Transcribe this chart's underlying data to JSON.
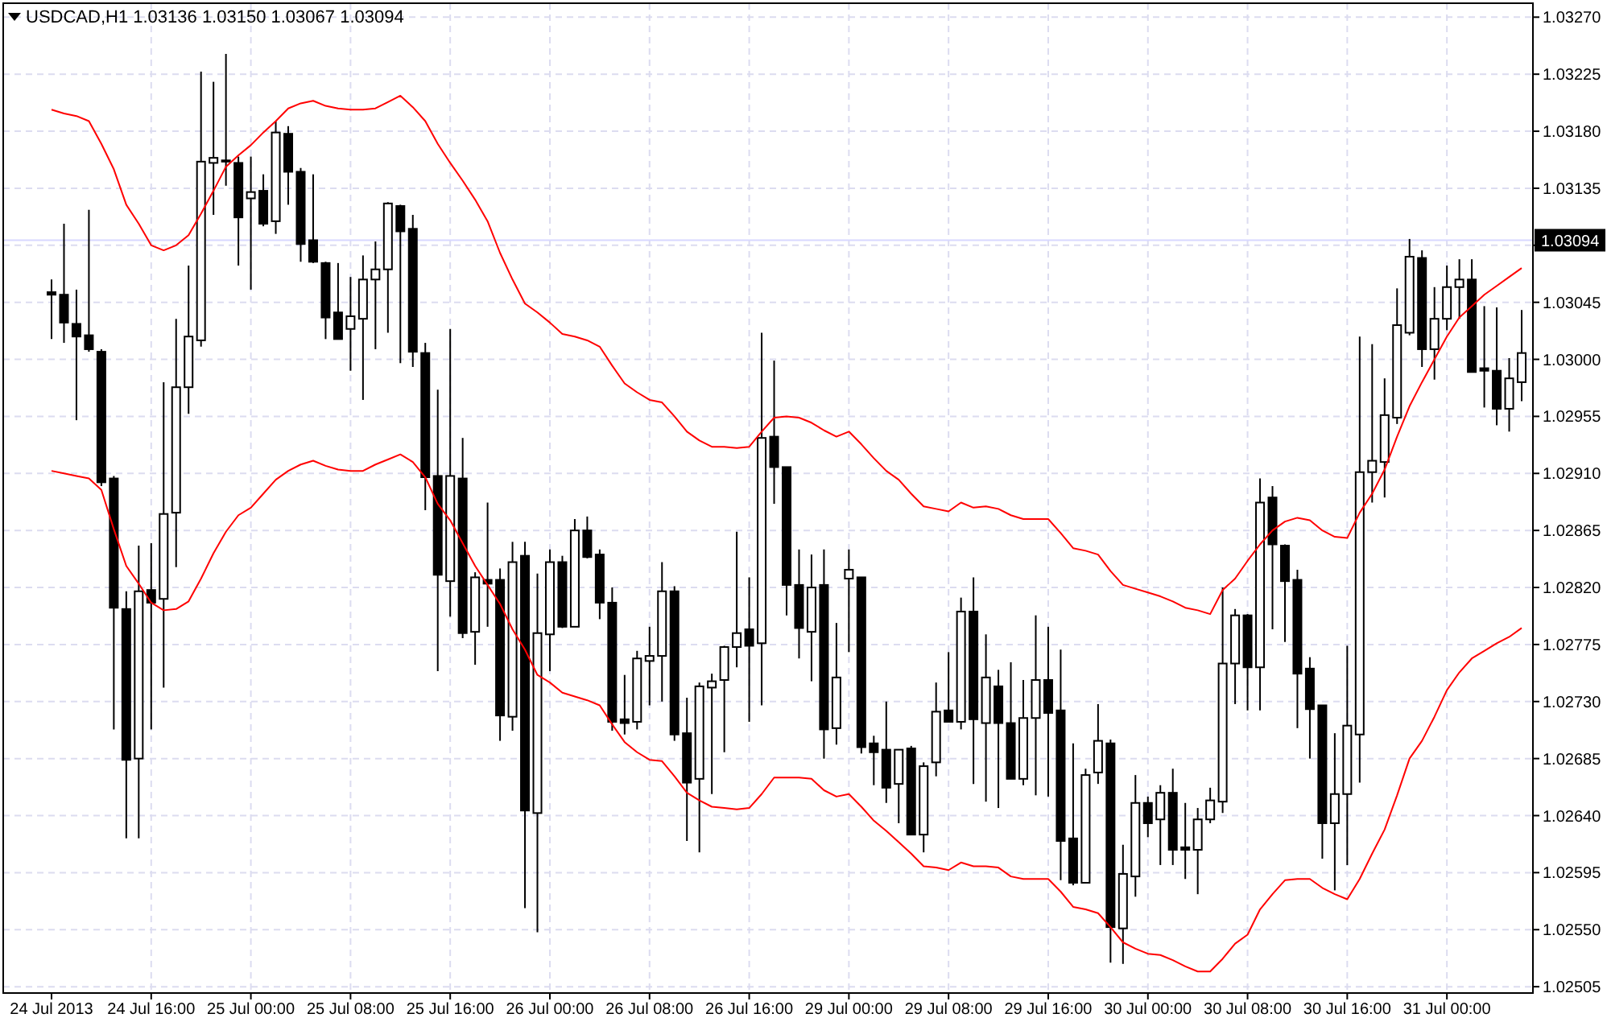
{
  "chart_data": {
    "type": "candlestick",
    "title": "USDCAD,H1 1.03136 1.03150 1.03067 1.03094",
    "categories": [
      "24 Jul 2013",
      null,
      null,
      null,
      null,
      null,
      null,
      null,
      "24 Jul 16:00",
      null,
      null,
      null,
      null,
      null,
      null,
      null,
      "25 Jul 00:00",
      null,
      null,
      null,
      null,
      null,
      null,
      null,
      "25 Jul 08:00",
      null,
      null,
      null,
      null,
      null,
      null,
      null,
      "25 Jul 16:00",
      null,
      null,
      null,
      null,
      null,
      null,
      null,
      "26 Jul 00:00",
      null,
      null,
      null,
      null,
      null,
      null,
      null,
      "26 Jul 08:00",
      null,
      null,
      null,
      null,
      null,
      null,
      null,
      "26 Jul 16:00",
      null,
      null,
      null,
      null,
      null,
      null,
      null,
      "29 Jul 00:00",
      null,
      null,
      null,
      null,
      null,
      null,
      null,
      "29 Jul 08:00",
      null,
      null,
      null,
      null,
      null,
      null,
      null,
      "29 Jul 16:00",
      null,
      null,
      null,
      null,
      null,
      null,
      null,
      "30 Jul 00:00",
      null,
      null,
      null,
      null,
      null,
      null,
      null,
      "30 Jul 08:00",
      null,
      null,
      null,
      null,
      null,
      null,
      null,
      "30 Jul 16:00",
      null,
      null,
      null,
      null,
      null,
      null,
      null,
      "31 Jul 00:00",
      null,
      null,
      null,
      null,
      null,
      null
    ],
    "ohlc": [
      [
        1.03053,
        1.03063,
        1.03016,
        1.03051
      ],
      [
        1.03051,
        1.03107,
        1.03013,
        1.03029
      ],
      [
        1.03028,
        1.03055,
        1.02952,
        1.03018
      ],
      [
        1.03019,
        1.03118,
        1.03006,
        1.03008
      ],
      [
        1.03006,
        1.03008,
        1.029,
        1.02903
      ],
      [
        1.02906,
        1.02908,
        1.02708,
        1.02804
      ],
      [
        1.02803,
        1.02817,
        1.02622,
        1.02684
      ],
      [
        1.02685,
        1.02853,
        1.02622,
        1.02817
      ],
      [
        1.02818,
        1.02855,
        1.02708,
        1.02808
      ],
      [
        1.02811,
        1.02982,
        1.02741,
        1.02878
      ],
      [
        1.02879,
        1.03032,
        1.02836,
        1.02978
      ],
      [
        1.02978,
        1.03074,
        1.02957,
        1.03018
      ],
      [
        1.03015,
        1.03227,
        1.0301,
        1.03156
      ],
      [
        1.03155,
        1.03219,
        1.03114,
        1.03159
      ],
      [
        1.03157,
        1.03241,
        1.03137,
        1.03156
      ],
      [
        1.03155,
        1.0316,
        1.03074,
        1.03112
      ],
      [
        1.03127,
        1.0316,
        1.03055,
        1.03132
      ],
      [
        1.03133,
        1.03146,
        1.03105,
        1.03107
      ],
      [
        1.03109,
        1.03188,
        1.03099,
        1.03179
      ],
      [
        1.03178,
        1.03184,
        1.03122,
        1.03148
      ],
      [
        1.03148,
        1.03151,
        1.03077,
        1.03091
      ],
      [
        1.03094,
        1.03146,
        1.03076,
        1.03077
      ],
      [
        1.03076,
        1.03077,
        1.03016,
        1.03033
      ],
      [
        1.03037,
        1.03076,
        1.03016,
        1.03016
      ],
      [
        1.03024,
        1.03065,
        1.02991,
        1.03034
      ],
      [
        1.03032,
        1.03082,
        1.02968,
        1.03063
      ],
      [
        1.03063,
        1.03093,
        1.03008,
        1.03071
      ],
      [
        1.03071,
        1.03124,
        1.03021,
        1.03123
      ],
      [
        1.03121,
        1.03122,
        1.02997,
        1.03101
      ],
      [
        1.03103,
        1.03114,
        1.02994,
        1.03006
      ],
      [
        1.03005,
        1.03013,
        1.02881,
        1.02907
      ],
      [
        1.02908,
        1.02976,
        1.02754,
        1.0283
      ],
      [
        1.02825,
        1.03024,
        1.02797,
        1.02908
      ],
      [
        1.02906,
        1.02938,
        1.0278,
        1.02784
      ],
      [
        1.02785,
        1.02832,
        1.02759,
        1.02828
      ],
      [
        1.02826,
        1.02887,
        1.02789,
        1.02823
      ],
      [
        1.02826,
        1.02835,
        1.02699,
        1.02719
      ],
      [
        1.02718,
        1.02856,
        1.02707,
        1.0284
      ],
      [
        1.02845,
        1.02856,
        1.02567,
        1.02644
      ],
      [
        1.02642,
        1.02831,
        1.02548,
        1.02784
      ],
      [
        1.02783,
        1.0285,
        1.02754,
        1.0284
      ],
      [
        1.0284,
        1.02845,
        1.02788,
        1.02789
      ],
      [
        1.02789,
        1.02874,
        1.02789,
        1.02865
      ],
      [
        1.02865,
        1.02876,
        1.02843,
        1.02844
      ],
      [
        1.02846,
        1.0285,
        1.02795,
        1.02808
      ],
      [
        1.02808,
        1.0282,
        1.02707,
        1.02714
      ],
      [
        1.02716,
        1.02751,
        1.02704,
        1.02713
      ],
      [
        1.02714,
        1.0277,
        1.02708,
        1.02764
      ],
      [
        1.02762,
        1.02789,
        1.02727,
        1.02766
      ],
      [
        1.02766,
        1.0284,
        1.0273,
        1.02817
      ],
      [
        1.02817,
        1.02821,
        1.02699,
        1.02704
      ],
      [
        1.02705,
        1.02733,
        1.0262,
        1.02666
      ],
      [
        1.02669,
        1.02745,
        1.02611,
        1.02742
      ],
      [
        1.02741,
        1.02752,
        1.02657,
        1.02746
      ],
      [
        1.02747,
        1.02774,
        1.0269,
        1.02773
      ],
      [
        1.02773,
        1.02864,
        1.02757,
        1.02784
      ],
      [
        1.02787,
        1.02828,
        1.02714,
        1.02774
      ],
      [
        1.02776,
        1.03021,
        1.02727,
        1.02938
      ],
      [
        1.02939,
        1.02999,
        1.02886,
        1.02915
      ],
      [
        1.02915,
        1.02915,
        1.02798,
        1.02822
      ],
      [
        1.02822,
        1.0285,
        1.02764,
        1.02788
      ],
      [
        1.02785,
        1.02846,
        1.02746,
        1.0282
      ],
      [
        1.02822,
        1.0285,
        1.02685,
        1.02708
      ],
      [
        1.02709,
        1.02792,
        1.02696,
        1.02749
      ],
      [
        1.02827,
        1.0285,
        1.02769,
        1.02834
      ],
      [
        1.02828,
        1.02828,
        1.02689,
        1.02694
      ],
      [
        1.02697,
        1.02703,
        1.02664,
        1.0269
      ],
      [
        1.02692,
        1.0273,
        1.0265,
        1.02662
      ],
      [
        1.02665,
        1.02692,
        1.02634,
        1.02692
      ],
      [
        1.02693,
        1.02695,
        1.02625,
        1.02625
      ],
      [
        1.02625,
        1.02682,
        1.02611,
        1.02679
      ],
      [
        1.02682,
        1.02745,
        1.02671,
        1.02722
      ],
      [
        1.02723,
        1.02769,
        1.02714,
        1.02714
      ],
      [
        1.02714,
        1.02812,
        1.02708,
        1.02801
      ],
      [
        1.02801,
        1.02828,
        1.02665,
        1.02716
      ],
      [
        1.02713,
        1.02783,
        1.02651,
        1.02749
      ],
      [
        1.02742,
        1.02755,
        1.02646,
        1.02713
      ],
      [
        1.02713,
        1.02761,
        1.02669,
        1.02669
      ],
      [
        1.02669,
        1.02747,
        1.02664,
        1.02717
      ],
      [
        1.02717,
        1.02798,
        1.02656,
        1.02747
      ],
      [
        1.02747,
        1.02789,
        1.02655,
        1.02721
      ],
      [
        1.02723,
        1.02771,
        1.02589,
        1.0262
      ],
      [
        1.02622,
        1.02697,
        1.02585,
        1.02587
      ],
      [
        1.02587,
        1.02677,
        1.02587,
        1.02672
      ],
      [
        1.02674,
        1.02728,
        1.02665,
        1.02699
      ],
      [
        1.02697,
        1.027,
        1.02524,
        1.02552
      ],
      [
        1.02551,
        1.02617,
        1.02523,
        1.02594
      ],
      [
        1.02592,
        1.02672,
        1.02576,
        1.0265
      ],
      [
        1.0265,
        1.02655,
        1.02623,
        1.02634
      ],
      [
        1.02637,
        1.02664,
        1.02601,
        1.02658
      ],
      [
        1.02658,
        1.02677,
        1.02601,
        1.02613
      ],
      [
        1.02615,
        1.0265,
        1.0259,
        1.02613
      ],
      [
        1.02613,
        1.02646,
        1.02578,
        1.02637
      ],
      [
        1.02637,
        1.02662,
        1.02634,
        1.02652
      ],
      [
        1.02651,
        1.0282,
        1.02642,
        1.0276
      ],
      [
        1.0276,
        1.02803,
        1.02728,
        1.02798
      ],
      [
        1.02798,
        1.02799,
        1.02723,
        1.02757
      ],
      [
        1.02757,
        1.02906,
        1.02723,
        1.02887
      ],
      [
        1.02891,
        1.029,
        1.02787,
        1.02854
      ],
      [
        1.02853,
        1.02854,
        1.02777,
        1.02825
      ],
      [
        1.02826,
        1.02834,
        1.02709,
        1.02752
      ],
      [
        1.02756,
        1.02765,
        1.02685,
        1.02724
      ],
      [
        1.02727,
        1.02727,
        1.02606,
        1.02634
      ],
      [
        1.02634,
        1.02705,
        1.02581,
        1.02657
      ],
      [
        1.02657,
        1.02774,
        1.02601,
        1.02711
      ],
      [
        1.02704,
        1.03018,
        1.02666,
        1.02911
      ],
      [
        1.02911,
        1.03012,
        1.02887,
        1.0292
      ],
      [
        1.02919,
        1.02985,
        1.02891,
        1.02956
      ],
      [
        1.02954,
        1.03056,
        1.02949,
        1.03027
      ],
      [
        1.03021,
        1.03095,
        1.03019,
        1.03081
      ],
      [
        1.0308,
        1.03086,
        1.02994,
        1.03008
      ],
      [
        1.03008,
        1.03057,
        1.02984,
        1.03032
      ],
      [
        1.03032,
        1.03074,
        1.03023,
        1.03057
      ],
      [
        1.03057,
        1.03079,
        1.03032,
        1.03063
      ],
      [
        1.03063,
        1.03079,
        1.0299,
        1.0299
      ],
      [
        1.02993,
        1.03042,
        1.02962,
        1.02991
      ],
      [
        1.02991,
        1.03041,
        1.02948,
        1.02961
      ],
      [
        1.02961,
        1.03001,
        1.02943,
        1.02985
      ],
      [
        1.02982,
        1.03039,
        1.02967,
        1.03005
      ]
    ],
    "series": [
      {
        "type": "line",
        "color": "#ff0000",
        "values": [
          1.03197,
          1.03194,
          1.03192,
          1.03188,
          1.0317,
          1.0315,
          1.03122,
          1.03107,
          1.0309,
          1.03086,
          1.0309,
          1.03098,
          1.03115,
          1.03133,
          1.03152,
          1.03161,
          1.03169,
          1.03179,
          1.03188,
          1.03198,
          1.03202,
          1.03204,
          1.032,
          1.03198,
          1.03197,
          1.03197,
          1.03198,
          1.03203,
          1.03208,
          1.03199,
          1.03188,
          1.0317,
          1.03155,
          1.03141,
          1.03126,
          1.03109,
          1.03084,
          1.03063,
          1.03044,
          1.03037,
          1.03029,
          1.0302,
          1.03018,
          1.03015,
          1.0301,
          1.02995,
          1.02981,
          1.02974,
          1.02968,
          1.02966,
          1.02955,
          1.02943,
          1.02936,
          1.02931,
          1.02931,
          1.0293,
          1.02931,
          1.02943,
          1.02954,
          1.02955,
          1.02954,
          1.0295,
          1.02944,
          1.02939,
          1.02943,
          1.02933,
          1.02922,
          1.02912,
          1.02905,
          1.02894,
          1.02884,
          1.02882,
          1.0288,
          1.02887,
          1.02883,
          1.02884,
          1.02882,
          1.02877,
          1.02874,
          1.02874,
          1.02874,
          1.02863,
          1.02851,
          1.02849,
          1.02846,
          1.02833,
          1.02822,
          1.02819,
          1.02816,
          1.02813,
          1.02809,
          1.02804,
          1.02802,
          1.02799,
          1.02818,
          1.02827,
          1.02841,
          1.02854,
          1.02865,
          1.02872,
          1.02875,
          1.02873,
          1.02865,
          1.0286,
          1.02859,
          1.02879,
          1.02894,
          1.02913,
          1.02939,
          1.02963,
          1.02982,
          1.03,
          1.03018,
          1.03033,
          1.03042,
          1.03051,
          1.03058,
          1.03065,
          1.03072
        ]
      },
      {
        "type": "line",
        "color": "#ff0000",
        "values": [
          1.02912,
          1.0291,
          1.02908,
          1.02906,
          1.02897,
          1.02866,
          1.02837,
          1.02823,
          1.02808,
          1.02802,
          1.02803,
          1.02809,
          1.02827,
          1.02847,
          1.02864,
          1.02877,
          1.02883,
          1.02894,
          1.02905,
          1.02912,
          1.02917,
          1.0292,
          1.02916,
          1.02913,
          1.02912,
          1.02912,
          1.02917,
          1.02921,
          1.02925,
          1.02919,
          1.02907,
          1.02886,
          1.02873,
          1.02855,
          1.02837,
          1.02822,
          1.02807,
          1.02787,
          1.02771,
          1.02751,
          1.02745,
          1.02737,
          1.02734,
          1.02731,
          1.02727,
          1.02712,
          1.02698,
          1.0269,
          1.02684,
          1.02683,
          1.02671,
          1.02658,
          1.02652,
          1.02647,
          1.02646,
          1.02645,
          1.02646,
          1.02657,
          1.0267,
          1.0267,
          1.0267,
          1.02669,
          1.0266,
          1.02655,
          1.02657,
          1.02647,
          1.02636,
          1.02628,
          1.02619,
          1.0261,
          1.026,
          1.02599,
          1.02597,
          1.02603,
          1.026,
          1.026,
          1.02599,
          1.02592,
          1.0259,
          1.0259,
          1.0259,
          1.0258,
          1.02568,
          1.02566,
          1.02563,
          1.02552,
          1.0254,
          1.02535,
          1.02531,
          1.0253,
          1.02526,
          1.02521,
          1.02517,
          1.02517,
          1.02527,
          1.02539,
          1.02546,
          1.02566,
          1.02578,
          1.02589,
          1.0259,
          1.0259,
          1.02583,
          1.02578,
          1.02574,
          1.0259,
          1.0261,
          1.02629,
          1.02656,
          1.02685,
          1.02699,
          1.02718,
          1.02739,
          1.02753,
          1.02764,
          1.0277,
          1.02776,
          1.02781,
          1.02788
        ]
      }
    ],
    "ylim": [
      1.025,
      1.03281
    ],
    "yticks": [
      {
        "value": 1.02505,
        "label": "1.02505"
      },
      {
        "value": 1.0255,
        "label": "1.02550"
      },
      {
        "value": 1.02595,
        "label": "1.02595"
      },
      {
        "value": 1.0264,
        "label": "1.02640"
      },
      {
        "value": 1.02685,
        "label": "1.02685"
      },
      {
        "value": 1.0273,
        "label": "1.02730"
      },
      {
        "value": 1.02775,
        "label": "1.02775"
      },
      {
        "value": 1.0282,
        "label": "1.02820"
      },
      {
        "value": 1.02865,
        "label": "1.02865"
      },
      {
        "value": 1.0291,
        "label": "1.02910"
      },
      {
        "value": 1.02955,
        "label": "1.02955"
      },
      {
        "value": 1.03,
        "label": "1.03000"
      },
      {
        "value": 1.03045,
        "label": "1.03045"
      },
      {
        "value": 1.0309,
        "label": null
      },
      {
        "value": 1.03135,
        "label": "1.03135"
      },
      {
        "value": 1.0318,
        "label": "1.03180"
      },
      {
        "value": 1.03225,
        "label": "1.03225"
      },
      {
        "value": 1.0327,
        "label": "1.03270"
      }
    ],
    "ref_lines": [
      {
        "axis": "y",
        "value": 1.03094,
        "label": "1.03094",
        "color": "#d8d8ff"
      }
    ],
    "grid": true
  }
}
